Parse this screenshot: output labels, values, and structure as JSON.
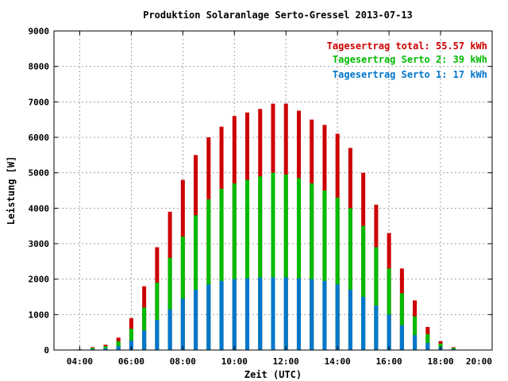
{
  "chart_data": {
    "type": "bar",
    "title": "Produktion Solaranlage Serto-Gressel 2013-07-13",
    "xlabel": "Zeit (UTC)",
    "ylabel": "Leistung [W]",
    "ylim": [
      0,
      9000
    ],
    "xlim": [
      "03:00",
      "20:00"
    ],
    "x_tick_labels": [
      "04:00",
      "06:00",
      "08:00",
      "10:00",
      "12:00",
      "14:00",
      "16:00",
      "18:00",
      "20:00"
    ],
    "y_tick_labels": [
      "0",
      "1000",
      "2000",
      "3000",
      "4000",
      "5000",
      "6000",
      "7000",
      "8000",
      "9000"
    ],
    "grid": true,
    "legend_position": "top-right",
    "legend": [
      {
        "text": "Tagesertrag total: 55.57 kWh",
        "color": "#cc0000"
      },
      {
        "text": "Tagesertrag Serto 2: 39 kWh",
        "color": "#00bb00"
      },
      {
        "text": "Tagesertrag Serto 1: 17 kWh",
        "color": "#0077cc"
      }
    ],
    "x": [
      "04:00",
      "04:30",
      "05:00",
      "05:30",
      "06:00",
      "06:30",
      "07:00",
      "07:30",
      "08:00",
      "08:30",
      "09:00",
      "09:30",
      "10:00",
      "10:30",
      "11:00",
      "11:30",
      "12:00",
      "12:30",
      "13:00",
      "13:30",
      "14:00",
      "14:30",
      "15:00",
      "15:30",
      "16:00",
      "16:30",
      "17:00",
      "17:30",
      "18:00",
      "18:30",
      "19:00"
    ],
    "series": [
      {
        "name": "Tagesertrag total",
        "color": "#cc0000",
        "values": [
          20,
          80,
          150,
          350,
          900,
          1800,
          2900,
          3900,
          4800,
          5500,
          6000,
          6300,
          6600,
          6700,
          6800,
          6950,
          6950,
          6750,
          6500,
          6350,
          6100,
          5700,
          5000,
          4100,
          3300,
          2300,
          1400,
          650,
          250,
          80,
          10
        ]
      },
      {
        "name": "Tagesertrag Serto 2",
        "color": "#00bb00",
        "values": [
          15,
          60,
          110,
          250,
          600,
          1200,
          1900,
          2600,
          3200,
          3800,
          4250,
          4550,
          4700,
          4800,
          4900,
          5000,
          4950,
          4850,
          4700,
          4500,
          4300,
          4000,
          3500,
          2900,
          2300,
          1600,
          950,
          450,
          180,
          60,
          8
        ]
      },
      {
        "name": "Tagesertrag Serto 1",
        "color": "#0077cc",
        "values": [
          5,
          25,
          50,
          110,
          270,
          550,
          850,
          1150,
          1450,
          1700,
          1850,
          1950,
          2000,
          2020,
          2050,
          2050,
          2050,
          2020,
          2000,
          1950,
          1850,
          1700,
          1500,
          1250,
          1000,
          700,
          420,
          200,
          80,
          25,
          3
        ]
      }
    ]
  }
}
